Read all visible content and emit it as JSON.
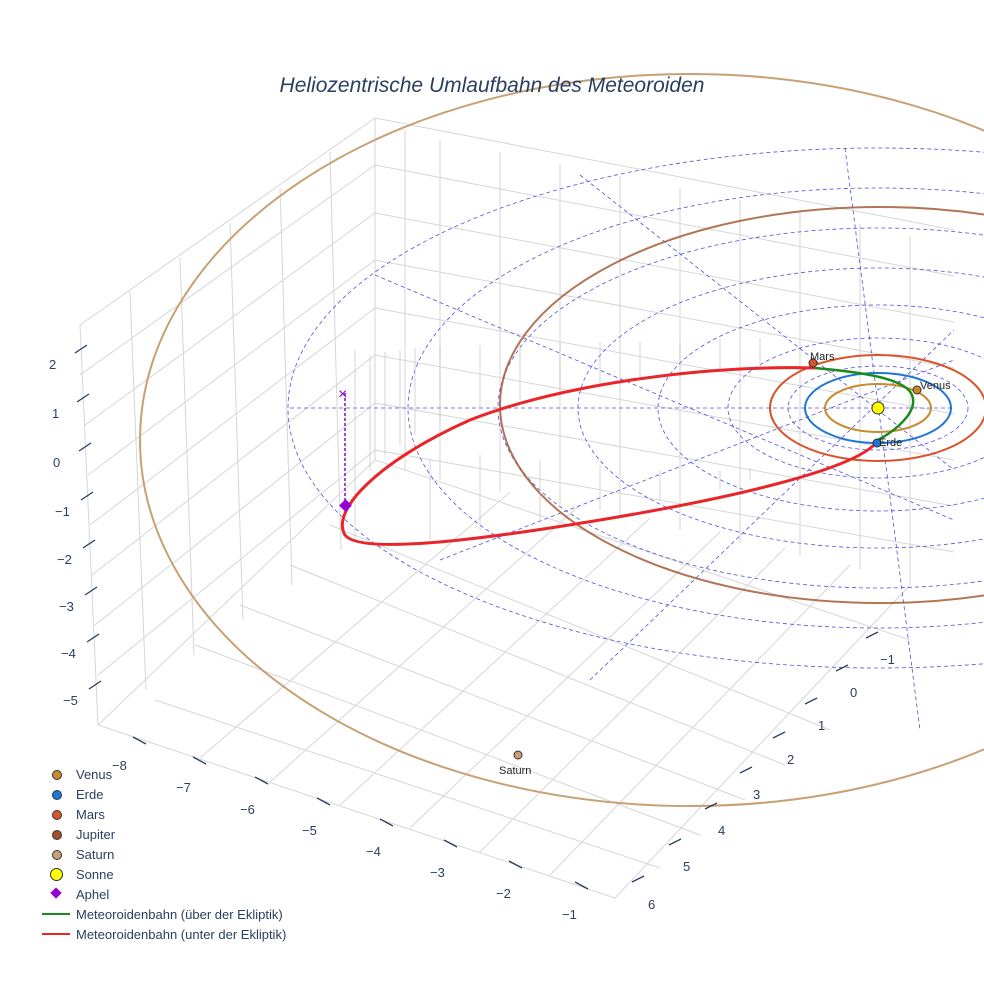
{
  "title": "Heliozentrische Umlaufbahn des Meteoroiden",
  "chart_data": {
    "type": "scatter3d",
    "axes": {
      "x": {
        "ticks": [
          "−8",
          "−7",
          "−6",
          "−5",
          "−4",
          "−3",
          "−2",
          "−1"
        ],
        "range": [
          -8.7,
          -0.5
        ]
      },
      "y": {
        "ticks": [
          "−1",
          "0",
          "1",
          "2",
          "3",
          "4",
          "5",
          "6"
        ],
        "range": [
          -1.5,
          6.3
        ]
      },
      "z": {
        "ticks": [
          "2",
          "1",
          "0",
          "−1",
          "−2",
          "−3",
          "−4",
          "−5"
        ],
        "range": [
          -5.5,
          2.5
        ]
      }
    },
    "bodies": [
      {
        "name": "Venus",
        "label": "Venus",
        "color": "#c98a2b"
      },
      {
        "name": "Erde",
        "label": "Erde",
        "color": "#1f77d4"
      },
      {
        "name": "Mars",
        "label": "Mars",
        "color": "#d9542b"
      },
      {
        "name": "Jupiter",
        "label": "",
        "color": "#a0522d"
      },
      {
        "name": "Saturn",
        "label": "Saturn",
        "color": "#c8a074"
      }
    ],
    "sun": {
      "name": "Sonne",
      "color": "#ffff00"
    },
    "aphel": {
      "name": "Aphel",
      "color": "#9400d3"
    },
    "meteoroid": {
      "above": {
        "name": "Meteoroidenbahn (über der Ekliptik)",
        "color": "#1a8a1a"
      },
      "below": {
        "name": "Meteoroidenbahn (unter der Ekliptik)",
        "color": "#e8262a"
      }
    },
    "grid_color": "#4444dd"
  },
  "legend": [
    {
      "label": "Venus",
      "kind": "dot",
      "color": "#c98a2b"
    },
    {
      "label": "Erde",
      "kind": "dot",
      "color": "#1f77d4"
    },
    {
      "label": "Mars",
      "kind": "dot",
      "color": "#d9542b"
    },
    {
      "label": "Jupiter",
      "kind": "dot",
      "color": "#a0522d"
    },
    {
      "label": "Saturn",
      "kind": "dot",
      "color": "#c8a074"
    },
    {
      "label": "Sonne",
      "kind": "bigdot",
      "color": "#ffff00"
    },
    {
      "label": "Aphel",
      "kind": "diamond",
      "color": "#9400d3"
    },
    {
      "label": "Meteoroidenbahn (über der Ekliptik)",
      "kind": "line",
      "color": "#1a8a1a"
    },
    {
      "label": "Meteoroidenbahn (unter der Ekliptik)",
      "kind": "line",
      "color": "#e8262a"
    }
  ]
}
